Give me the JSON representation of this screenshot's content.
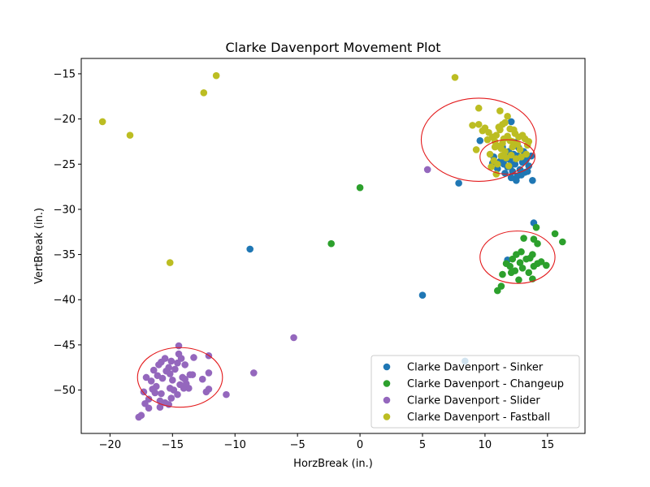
{
  "chart_data": {
    "type": "scatter",
    "title": "Clarke Davenport Movement Plot",
    "xlabel": "HorzBreak (in.)",
    "ylabel": "VertBreak (in.)",
    "xlim": [
      -22.3,
      18.0
    ],
    "ylim": [
      -54.8,
      -13.3
    ],
    "xticks": [
      -20,
      -15,
      -10,
      -5,
      0,
      5,
      10,
      15
    ],
    "yticks": [
      -15,
      -20,
      -25,
      -30,
      -35,
      -40,
      -45,
      -50
    ],
    "tick_labels_x": [
      "−20",
      "−15",
      "−10",
      "−5",
      "0",
      "5",
      "10",
      "15"
    ],
    "tick_labels_y": [
      "−15",
      "−20",
      "−25",
      "−30",
      "−35",
      "−40",
      "−45",
      "−50"
    ],
    "grid": false,
    "legend_position": "lower right",
    "series": [
      {
        "name": "Clarke Davenport - Sinker",
        "color": "#1f77b4",
        "points": [
          [
            -8.8,
            -34.4
          ],
          [
            5.0,
            -39.5
          ],
          [
            8.4,
            -46.8
          ],
          [
            7.9,
            -27.1
          ],
          [
            9.6,
            -22.4
          ],
          [
            11.8,
            -35.6
          ],
          [
            13.9,
            -31.5
          ],
          [
            13.8,
            -26.8
          ],
          [
            12.1,
            -20.3
          ],
          [
            10.6,
            -24.9
          ],
          [
            10.7,
            -24.2
          ],
          [
            11.2,
            -24.7
          ],
          [
            11.5,
            -25.0
          ],
          [
            11.8,
            -25.3
          ],
          [
            12.0,
            -24.5
          ],
          [
            12.2,
            -25.8
          ],
          [
            12.4,
            -25.0
          ],
          [
            12.6,
            -26.3
          ],
          [
            12.8,
            -25.6
          ],
          [
            13.0,
            -24.8
          ],
          [
            13.2,
            -25.9
          ],
          [
            13.5,
            -25.2
          ],
          [
            13.7,
            -24.1
          ],
          [
            12.3,
            -23.9
          ],
          [
            11.9,
            -23.6
          ],
          [
            12.7,
            -23.2
          ],
          [
            12.5,
            -26.8
          ],
          [
            12.1,
            -26.5
          ],
          [
            11.6,
            -26.0
          ],
          [
            13.3,
            -24.5
          ],
          [
            12.9,
            -26.2
          ],
          [
            11.4,
            -23.1
          ],
          [
            12.6,
            -24.1
          ],
          [
            12.1,
            -25.1
          ],
          [
            11.7,
            -24.4
          ],
          [
            13.1,
            -23.6
          ],
          [
            12.4,
            -22.6
          ],
          [
            11.0,
            -25.5
          ],
          [
            13.4,
            -25.8
          ]
        ]
      },
      {
        "name": "Clarke Davenport - Changeup",
        "color": "#2ca02c",
        "points": [
          [
            0.0,
            -27.6
          ],
          [
            -2.3,
            -33.8
          ],
          [
            15.6,
            -32.7
          ],
          [
            16.2,
            -33.6
          ],
          [
            14.1,
            -32.0
          ],
          [
            14.2,
            -33.8
          ],
          [
            13.9,
            -33.3
          ],
          [
            13.1,
            -33.2
          ],
          [
            12.9,
            -34.7
          ],
          [
            12.5,
            -35.0
          ],
          [
            12.2,
            -35.5
          ],
          [
            12.0,
            -36.3
          ],
          [
            12.1,
            -37.0
          ],
          [
            11.4,
            -37.2
          ],
          [
            11.3,
            -38.5
          ],
          [
            11.0,
            -39.0
          ],
          [
            12.7,
            -37.8
          ],
          [
            13.8,
            -37.7
          ],
          [
            13.5,
            -37.0
          ],
          [
            13.9,
            -36.3
          ],
          [
            14.2,
            -36.0
          ],
          [
            14.9,
            -36.2
          ],
          [
            13.3,
            -35.5
          ],
          [
            12.8,
            -35.9
          ],
          [
            13.6,
            -35.4
          ],
          [
            13.0,
            -36.5
          ],
          [
            11.7,
            -36.0
          ],
          [
            13.8,
            -35.0
          ],
          [
            14.5,
            -35.8
          ],
          [
            12.4,
            -36.8
          ]
        ]
      },
      {
        "name": "Clarke Davenport - Slider",
        "color": "#9467bd",
        "points": [
          [
            5.4,
            -25.6
          ],
          [
            -5.3,
            -44.2
          ],
          [
            -8.5,
            -48.1
          ],
          [
            -10.7,
            -50.5
          ],
          [
            -12.1,
            -46.2
          ],
          [
            -12.1,
            -48.1
          ],
          [
            -12.1,
            -49.9
          ],
          [
            -12.3,
            -50.2
          ],
          [
            -12.6,
            -48.8
          ],
          [
            -13.3,
            -46.4
          ],
          [
            -13.6,
            -48.3
          ],
          [
            -13.7,
            -49.8
          ],
          [
            -14.0,
            -47.2
          ],
          [
            -14.2,
            -48.6
          ],
          [
            -14.4,
            -49.4
          ],
          [
            -14.5,
            -45.1
          ],
          [
            -14.5,
            -46.0
          ],
          [
            -14.6,
            -50.5
          ],
          [
            -14.8,
            -47.7
          ],
          [
            -15.0,
            -48.9
          ],
          [
            -15.1,
            -46.8
          ],
          [
            -15.2,
            -49.8
          ],
          [
            -15.3,
            -51.6
          ],
          [
            -15.5,
            -47.9
          ],
          [
            -15.6,
            -46.5
          ],
          [
            -15.8,
            -48.7
          ],
          [
            -15.9,
            -50.4
          ],
          [
            -16.0,
            -51.9
          ],
          [
            -16.1,
            -47.2
          ],
          [
            -16.3,
            -49.6
          ],
          [
            -16.4,
            -50.3
          ],
          [
            -16.5,
            -47.8
          ],
          [
            -16.7,
            -49.0
          ],
          [
            -16.9,
            -51.0
          ],
          [
            -17.1,
            -48.6
          ],
          [
            -17.2,
            -51.5
          ],
          [
            -17.3,
            -50.2
          ],
          [
            -17.5,
            -52.8
          ],
          [
            -17.7,
            -53.0
          ],
          [
            -16.9,
            -52.0
          ],
          [
            -15.6,
            -51.4
          ],
          [
            -14.1,
            -49.8
          ],
          [
            -13.4,
            -48.3
          ],
          [
            -14.6,
            -47.0
          ],
          [
            -15.2,
            -48.2
          ],
          [
            -16.2,
            -48.4
          ],
          [
            -14.0,
            -48.8
          ],
          [
            -15.9,
            -46.9
          ],
          [
            -14.9,
            -50.0
          ],
          [
            -16.0,
            -51.2
          ],
          [
            -13.9,
            -49.3
          ],
          [
            -15.3,
            -47.5
          ],
          [
            -14.3,
            -46.5
          ],
          [
            -16.6,
            -49.9
          ],
          [
            -15.1,
            -50.9
          ]
        ]
      },
      {
        "name": "Clarke Davenport - Fastball",
        "color": "#bcbd22",
        "points": [
          [
            -20.6,
            -20.3
          ],
          [
            -18.4,
            -21.8
          ],
          [
            -12.5,
            -17.1
          ],
          [
            -11.5,
            -15.2
          ],
          [
            -15.2,
            -35.9
          ],
          [
            7.6,
            -15.4
          ],
          [
            9.5,
            -18.8
          ],
          [
            11.2,
            -19.1
          ],
          [
            11.8,
            -19.7
          ],
          [
            9.3,
            -23.4
          ],
          [
            9.0,
            -20.7
          ],
          [
            9.5,
            -20.6
          ],
          [
            10.0,
            -21.0
          ],
          [
            10.3,
            -21.5
          ],
          [
            10.6,
            -22.0
          ],
          [
            10.8,
            -22.5
          ],
          [
            11.0,
            -23.0
          ],
          [
            11.2,
            -21.2
          ],
          [
            11.4,
            -22.7
          ],
          [
            11.6,
            -23.6
          ],
          [
            11.8,
            -21.9
          ],
          [
            12.0,
            -22.4
          ],
          [
            12.2,
            -23.1
          ],
          [
            12.4,
            -21.6
          ],
          [
            12.6,
            -22.8
          ],
          [
            12.8,
            -23.4
          ],
          [
            13.0,
            -21.8
          ],
          [
            13.2,
            -22.2
          ],
          [
            13.4,
            -22.9
          ],
          [
            10.4,
            -23.9
          ],
          [
            10.7,
            -24.6
          ],
          [
            11.0,
            -25.0
          ],
          [
            11.3,
            -24.1
          ],
          [
            11.7,
            -24.3
          ],
          [
            12.1,
            -24.0
          ],
          [
            12.5,
            -24.4
          ],
          [
            12.9,
            -24.2
          ],
          [
            13.3,
            -23.9
          ],
          [
            10.9,
            -26.1
          ],
          [
            10.5,
            -25.3
          ],
          [
            11.9,
            -25.2
          ],
          [
            11.4,
            -20.6
          ],
          [
            11.1,
            -20.9
          ],
          [
            12.3,
            -21.2
          ],
          [
            9.8,
            -21.3
          ],
          [
            10.2,
            -22.3
          ],
          [
            11.6,
            -20.4
          ],
          [
            12.7,
            -22.0
          ],
          [
            13.5,
            -22.5
          ],
          [
            10.9,
            -21.8
          ],
          [
            11.3,
            -23.3
          ],
          [
            12.0,
            -21.1
          ],
          [
            11.5,
            -22.2
          ],
          [
            10.8,
            -23.1
          ],
          [
            12.2,
            -22.5
          ]
        ]
      }
    ],
    "ellipses": [
      {
        "color": "#e31a1c",
        "cx": 9.5,
        "cy": -22.3,
        "rx": 4.6,
        "ry": 4.6
      },
      {
        "color": "#e31a1c",
        "cx": 11.8,
        "cy": -24.2,
        "rx": 2.2,
        "ry": 1.9
      },
      {
        "color": "#e31a1c",
        "cx": 12.6,
        "cy": -35.3,
        "rx": 3.0,
        "ry": 2.9
      },
      {
        "color": "#e31a1c",
        "cx": -14.4,
        "cy": -48.6,
        "rx": 3.4,
        "ry": 3.3
      }
    ]
  }
}
